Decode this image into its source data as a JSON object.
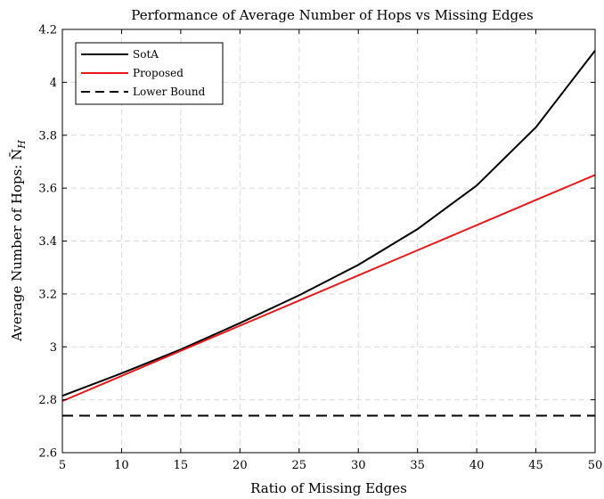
{
  "chart_data": {
    "type": "line",
    "title": "Performance of Average Number of Hops vs Missing Edges",
    "xlabel": "Ratio of Missing Edges",
    "ylabel": "Average Number of Hops: N̄",
    "ylabel_sub": "H",
    "xlim": [
      5,
      50
    ],
    "ylim": [
      2.6,
      4.2
    ],
    "xticks": [
      5,
      10,
      15,
      20,
      25,
      30,
      35,
      40,
      45,
      50
    ],
    "yticks": [
      2.6,
      2.8,
      3,
      3.2,
      3.4,
      3.6,
      3.8,
      4,
      4.2
    ],
    "grid": true,
    "legend_position": "top-left",
    "x": [
      5,
      10,
      15,
      20,
      25,
      30,
      35,
      40,
      45,
      50
    ],
    "series": [
      {
        "name": "SotA",
        "color": "#000000",
        "dash": "solid",
        "values": [
          2.815,
          2.9,
          2.99,
          3.09,
          3.195,
          3.31,
          3.445,
          3.61,
          3.83,
          4.12
        ]
      },
      {
        "name": "Proposed",
        "color": "#e41a1c",
        "dash": "solid",
        "values": [
          2.795,
          2.89,
          2.985,
          3.08,
          3.175,
          3.27,
          3.365,
          3.46,
          3.555,
          3.65
        ]
      },
      {
        "name": "Lower Bound",
        "color": "#000000",
        "dash": "dashed",
        "values": [
          2.74,
          2.74,
          2.74,
          2.74,
          2.74,
          2.74,
          2.74,
          2.74,
          2.74,
          2.74
        ]
      }
    ]
  }
}
